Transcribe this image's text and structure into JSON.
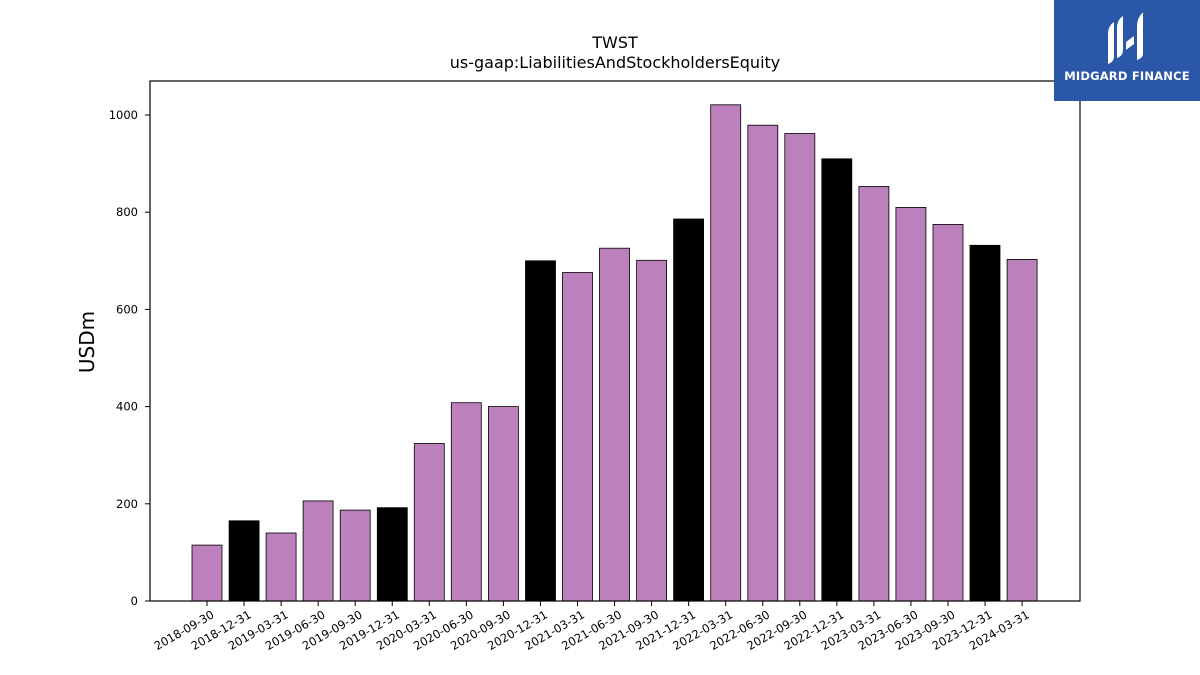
{
  "logo": {
    "text": "MIDGARD FINANCE",
    "background": "#2b57a8"
  },
  "colors": {
    "quarter_bar": "#bc80bd",
    "year_end_bar": "#000000"
  },
  "chart_data": {
    "type": "bar",
    "title": "TWST",
    "subtitle": "us-gaap:LiabilitiesAndStockholdersEquity",
    "xlabel": "",
    "ylabel": "USDm",
    "ylim": [
      0,
      1070
    ],
    "yticks": [
      0,
      200,
      400,
      600,
      800,
      1000
    ],
    "grid": false,
    "categories": [
      "2018-09-30",
      "2018-12-31",
      "2019-03-31",
      "2019-06-30",
      "2019-09-30",
      "2019-12-31",
      "2020-03-31",
      "2020-06-30",
      "2020-09-30",
      "2020-12-31",
      "2021-03-31",
      "2021-06-30",
      "2021-09-30",
      "2021-12-31",
      "2022-03-31",
      "2022-06-30",
      "2022-09-30",
      "2022-12-31",
      "2023-03-31",
      "2023-06-30",
      "2023-09-30",
      "2023-12-31",
      "2024-03-31"
    ],
    "values": [
      115,
      165,
      140,
      206,
      187,
      192,
      324,
      408,
      400,
      700,
      676,
      726,
      701,
      786,
      1021,
      979,
      962,
      910,
      853,
      810,
      775,
      732,
      703
    ]
  }
}
